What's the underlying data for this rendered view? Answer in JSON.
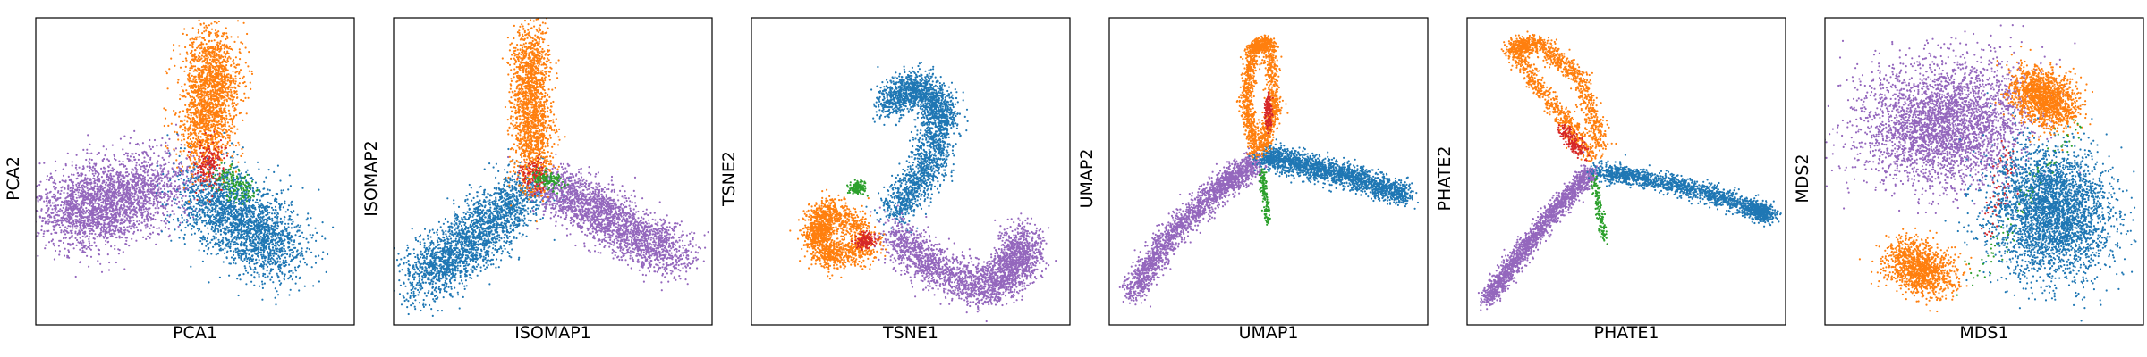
{
  "colors": {
    "blue": "#1f77b4",
    "orange": "#ff7f0e",
    "green": "#2ca02c",
    "red": "#d62728",
    "purple": "#9467bd"
  },
  "chart_data": [
    {
      "type": "scatter",
      "title": "",
      "xlabel": "PCA1",
      "ylabel": "PCA2",
      "xlim": [
        0,
        1
      ],
      "ylim": [
        0,
        1
      ],
      "ticks": "none",
      "grid": false,
      "clusters": [
        {
          "color": "purple",
          "points": 2600,
          "path": [
            [
              0.1,
              0.35
            ],
            [
              0.22,
              0.4
            ],
            [
              0.4,
              0.47
            ]
          ],
          "spread": [
            0.075,
            0.065
          ]
        },
        {
          "color": "blue",
          "points": 2200,
          "path": [
            [
              0.52,
              0.44
            ],
            [
              0.65,
              0.33
            ],
            [
              0.78,
              0.23
            ]
          ],
          "spread": [
            0.06,
            0.065
          ]
        },
        {
          "color": "orange",
          "points": 1900,
          "path": [
            [
              0.56,
              0.9
            ],
            [
              0.55,
              0.75
            ],
            [
              0.53,
              0.58
            ]
          ],
          "spread": [
            0.045,
            0.06
          ]
        },
        {
          "color": "red",
          "points": 180,
          "path": [
            [
              0.55,
              0.56
            ],
            [
              0.54,
              0.48
            ]
          ],
          "spread": [
            0.025,
            0.03
          ]
        },
        {
          "color": "green",
          "points": 150,
          "path": [
            [
              0.58,
              0.5
            ],
            [
              0.67,
              0.42
            ]
          ],
          "spread": [
            0.02,
            0.025
          ]
        }
      ]
    },
    {
      "type": "scatter",
      "title": "",
      "xlabel": "ISOMAP1",
      "ylabel": "ISOMAP2",
      "xlim": [
        0,
        1
      ],
      "ylim": [
        0,
        1
      ],
      "ticks": "none",
      "grid": false,
      "clusters": [
        {
          "color": "blue",
          "points": 2200,
          "path": [
            [
              0.08,
              0.14
            ],
            [
              0.25,
              0.28
            ],
            [
              0.42,
              0.44
            ]
          ],
          "spread": [
            0.045,
            0.05
          ]
        },
        {
          "color": "purple",
          "points": 2200,
          "path": [
            [
              0.5,
              0.46
            ],
            [
              0.68,
              0.34
            ],
            [
              0.88,
              0.22
            ]
          ],
          "spread": [
            0.05,
            0.04
          ]
        },
        {
          "color": "orange",
          "points": 1700,
          "path": [
            [
              0.43,
              0.92
            ],
            [
              0.43,
              0.7
            ],
            [
              0.44,
              0.5
            ]
          ],
          "spread": [
            0.03,
            0.06
          ]
        },
        {
          "color": "red",
          "points": 120,
          "path": [
            [
              0.44,
              0.52
            ],
            [
              0.44,
              0.46
            ]
          ],
          "spread": [
            0.02,
            0.02
          ]
        },
        {
          "color": "green",
          "points": 120,
          "path": [
            [
              0.46,
              0.48
            ],
            [
              0.52,
              0.46
            ]
          ],
          "spread": [
            0.02,
            0.015
          ]
        }
      ]
    },
    {
      "type": "scatter",
      "title": "",
      "xlabel": "TSNE1",
      "ylabel": "TSNE2",
      "xlim": [
        0,
        1
      ],
      "ylim": [
        0,
        1
      ],
      "ticks": "none",
      "grid": false,
      "clusters": [
        {
          "color": "blue",
          "points": 2400,
          "path": [
            [
              0.42,
              0.72
            ],
            [
              0.52,
              0.78
            ],
            [
              0.6,
              0.7
            ],
            [
              0.56,
              0.52
            ],
            [
              0.45,
              0.36
            ]
          ],
          "spread": [
            0.03,
            0.03
          ]
        },
        {
          "color": "purple",
          "points": 2400,
          "path": [
            [
              0.44,
              0.3
            ],
            [
              0.58,
              0.18
            ],
            [
              0.74,
              0.12
            ],
            [
              0.84,
              0.2
            ],
            [
              0.85,
              0.28
            ]
          ],
          "spread": [
            0.035,
            0.035
          ]
        },
        {
          "color": "orange",
          "points": 1500,
          "path": [
            [
              0.36,
              0.3
            ],
            [
              0.24,
              0.38
            ],
            [
              0.2,
              0.3
            ],
            [
              0.25,
              0.22
            ],
            [
              0.37,
              0.26
            ]
          ],
          "spread": [
            0.025,
            0.025
          ]
        },
        {
          "color": "red",
          "points": 160,
          "path": [
            [
              0.34,
              0.27
            ],
            [
              0.38,
              0.28
            ]
          ],
          "spread": [
            0.012,
            0.012
          ]
        },
        {
          "color": "green",
          "points": 140,
          "path": [
            [
              0.32,
              0.44
            ],
            [
              0.35,
              0.45
            ]
          ],
          "spread": [
            0.01,
            0.01
          ]
        }
      ]
    },
    {
      "type": "scatter",
      "title": "",
      "xlabel": "UMAP1",
      "ylabel": "UMAP2",
      "xlim": [
        0,
        1
      ],
      "ylim": [
        0,
        1
      ],
      "ticks": "none",
      "grid": false,
      "clusters": [
        {
          "color": "purple",
          "points": 2000,
          "path": [
            [
              0.07,
              0.1
            ],
            [
              0.18,
              0.28
            ],
            [
              0.34,
              0.44
            ],
            [
              0.46,
              0.53
            ]
          ],
          "spread": [
            0.02,
            0.02
          ]
        },
        {
          "color": "blue",
          "points": 2000,
          "path": [
            [
              0.48,
              0.55
            ],
            [
              0.62,
              0.52
            ],
            [
              0.77,
              0.48
            ],
            [
              0.93,
              0.42
            ]
          ],
          "spread": [
            0.02,
            0.02
          ]
        },
        {
          "color": "orange",
          "points": 1500,
          "path": [
            [
              0.46,
              0.56
            ],
            [
              0.43,
              0.72
            ],
            [
              0.45,
              0.9
            ],
            [
              0.5,
              0.92
            ],
            [
              0.52,
              0.72
            ],
            [
              0.48,
              0.57
            ]
          ],
          "spread": [
            0.012,
            0.012
          ]
        },
        {
          "color": "red",
          "points": 140,
          "path": [
            [
              0.5,
              0.74
            ],
            [
              0.5,
              0.64
            ]
          ],
          "spread": [
            0.006,
            0.01
          ]
        },
        {
          "color": "green",
          "points": 140,
          "path": [
            [
              0.48,
              0.5
            ],
            [
              0.5,
              0.33
            ]
          ],
          "spread": [
            0.006,
            0.008
          ]
        }
      ]
    },
    {
      "type": "scatter",
      "title": "",
      "xlabel": "PHATE1",
      "ylabel": "PHATE2",
      "xlim": [
        0,
        1
      ],
      "ylim": [
        0,
        1
      ],
      "ticks": "none",
      "grid": false,
      "clusters": [
        {
          "color": "purple",
          "points": 1800,
          "path": [
            [
              0.06,
              0.08
            ],
            [
              0.16,
              0.22
            ],
            [
              0.28,
              0.38
            ],
            [
              0.39,
              0.5
            ]
          ],
          "spread": [
            0.015,
            0.015
          ]
        },
        {
          "color": "blue",
          "points": 1800,
          "path": [
            [
              0.41,
              0.5
            ],
            [
              0.55,
              0.48
            ],
            [
              0.72,
              0.44
            ],
            [
              0.9,
              0.38
            ],
            [
              0.94,
              0.36
            ]
          ],
          "spread": [
            0.02,
            0.015
          ]
        },
        {
          "color": "orange",
          "points": 1500,
          "path": [
            [
              0.4,
              0.55
            ],
            [
              0.28,
              0.7
            ],
            [
              0.14,
              0.9
            ],
            [
              0.22,
              0.92
            ],
            [
              0.36,
              0.8
            ],
            [
              0.42,
              0.58
            ]
          ],
          "spread": [
            0.015,
            0.015
          ]
        },
        {
          "color": "red",
          "points": 160,
          "path": [
            [
              0.3,
              0.64
            ],
            [
              0.36,
              0.56
            ]
          ],
          "spread": [
            0.012,
            0.012
          ]
        },
        {
          "color": "green",
          "points": 140,
          "path": [
            [
              0.4,
              0.48
            ],
            [
              0.43,
              0.28
            ]
          ],
          "spread": [
            0.006,
            0.01
          ]
        }
      ]
    },
    {
      "type": "scatter",
      "title": "",
      "xlabel": "MDS1",
      "ylabel": "MDS2",
      "xlim": [
        0,
        1
      ],
      "ylim": [
        0,
        1
      ],
      "ticks": "none",
      "grid": false,
      "clusters": [
        {
          "color": "purple",
          "points": 3200,
          "path": [
            [
              0.22,
              0.66
            ],
            [
              0.38,
              0.62
            ],
            [
              0.52,
              0.72
            ]
          ],
          "spread": [
            0.1,
            0.1
          ]
        },
        {
          "color": "blue",
          "points": 3200,
          "path": [
            [
              0.64,
              0.44
            ],
            [
              0.76,
              0.38
            ],
            [
              0.68,
              0.26
            ]
          ],
          "spread": [
            0.09,
            0.09
          ]
        },
        {
          "color": "orange",
          "points": 1400,
          "path": [
            [
              0.64,
              0.78
            ],
            [
              0.74,
              0.7
            ]
          ],
          "spread": [
            0.04,
            0.04
          ]
        },
        {
          "color": "orange",
          "points": 1200,
          "path": [
            [
              0.25,
              0.22
            ],
            [
              0.35,
              0.15
            ]
          ],
          "spread": [
            0.045,
            0.04
          ]
        },
        {
          "color": "green",
          "points": 80,
          "path": [
            [
              0.8,
              0.66
            ],
            [
              0.45,
              0.12
            ]
          ],
          "spread": [
            0.02,
            0.02
          ]
        },
        {
          "color": "red",
          "points": 60,
          "path": [
            [
              0.52,
              0.3
            ],
            [
              0.58,
              0.6
            ]
          ],
          "spread": [
            0.02,
            0.02
          ]
        }
      ]
    }
  ]
}
